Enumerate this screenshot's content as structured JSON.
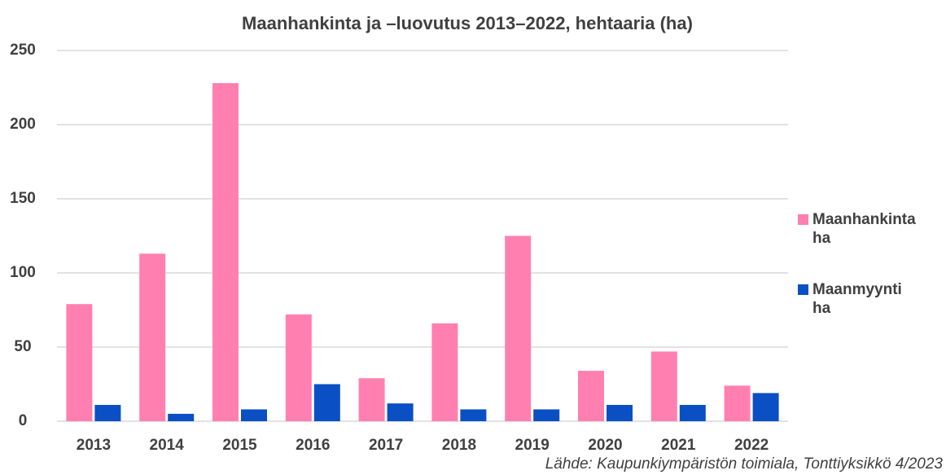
{
  "chart_data": {
    "type": "bar",
    "title": "Maanhankinta ja –luovutus 2013–2022, hehtaaria (ha)",
    "note": "Lähde: Kaupunkiympäristön toimiala, Tonttiyksikkö 4/2023",
    "categories": [
      "2013",
      "2014",
      "2015",
      "2016",
      "2017",
      "2018",
      "2019",
      "2020",
      "2021",
      "2022"
    ],
    "series": [
      {
        "name": "Maanhankinta ha",
        "color": "#ff80b0",
        "values": [
          79,
          113,
          228,
          72,
          29,
          66,
          125,
          34,
          47,
          24
        ]
      },
      {
        "name": "Maanmyynti ha",
        "color": "#0a50c4",
        "values": [
          11,
          5,
          8,
          25,
          12,
          8,
          8,
          11,
          11,
          19
        ]
      }
    ],
    "ylim": [
      0,
      250
    ],
    "yticks": [
      0,
      50,
      100,
      150,
      200,
      250
    ],
    "grid": true,
    "legend": "right"
  }
}
